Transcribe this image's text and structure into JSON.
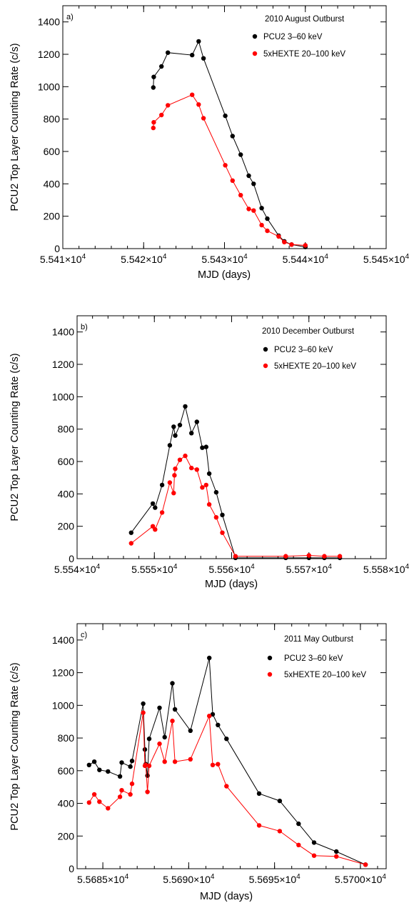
{
  "chart_data": [
    {
      "type": "line",
      "panel_label": "a)",
      "title": "2010 August Outburst",
      "xlabel": "MJD (days)",
      "ylabel": "PCU2 Top Layer Counting Rate (c/s)",
      "xlim": [
        55410,
        55450
      ],
      "ylim": [
        0,
        1500
      ],
      "xticks": [
        {
          "value": 55410,
          "mant": "5.541",
          "exp": "4"
        },
        {
          "value": 55420,
          "mant": "5.542",
          "exp": "4"
        },
        {
          "value": 55430,
          "mant": "5.543",
          "exp": "4"
        },
        {
          "value": 55440,
          "mant": "5.544",
          "exp": "4"
        },
        {
          "value": 55450,
          "mant": "5.545",
          "exp": "4"
        }
      ],
      "yticks": [
        0,
        200,
        400,
        600,
        800,
        1000,
        1200,
        1400
      ],
      "times_symbol": "×10",
      "legend_position": "top-right",
      "series": [
        {
          "name": "PCU2 3–60 keV",
          "color": "#000000",
          "x": [
            55421.2,
            55421.25,
            55422.2,
            55423.0,
            55426.0,
            55426.8,
            55427.4,
            55430.1,
            55431.0,
            55432.0,
            55433.0,
            55433.6,
            55434.6,
            55435.3,
            55436.7,
            55437.4,
            55438.3,
            55440.0
          ],
          "y": [
            995,
            1060,
            1125,
            1210,
            1195,
            1280,
            1175,
            820,
            695,
            580,
            450,
            400,
            250,
            185,
            80,
            45,
            25,
            10
          ]
        },
        {
          "name": "5xHEXTE 20–100 keV",
          "color": "#ff0000",
          "x": [
            55421.2,
            55421.25,
            55422.2,
            55423.0,
            55426.0,
            55426.8,
            55427.4,
            55430.1,
            55431.0,
            55432.0,
            55433.0,
            55433.6,
            55434.6,
            55435.3,
            55436.7,
            55437.4,
            55438.3,
            55440.0
          ],
          "y": [
            745,
            780,
            825,
            885,
            950,
            890,
            805,
            515,
            420,
            330,
            245,
            235,
            145,
            110,
            75,
            40,
            25,
            20
          ]
        }
      ]
    },
    {
      "type": "line",
      "panel_label": "b)",
      "title": "2010 December Outburst",
      "xlabel": "MJD (days)",
      "ylabel": "PCU2 Top Layer Counting Rate (c/s)",
      "xlim": [
        55540,
        55580
      ],
      "ylim": [
        0,
        1500
      ],
      "xticks": [
        {
          "value": 55540,
          "mant": "5.554",
          "exp": "4"
        },
        {
          "value": 55550,
          "mant": "5.555",
          "exp": "4"
        },
        {
          "value": 55560,
          "mant": "5.556",
          "exp": "4"
        },
        {
          "value": 55570,
          "mant": "5.557",
          "exp": "4"
        },
        {
          "value": 55580,
          "mant": "5.558",
          "exp": "4"
        }
      ],
      "yticks": [
        0,
        200,
        400,
        600,
        800,
        1000,
        1200,
        1400
      ],
      "times_symbol": "×10",
      "legend_position": "top-right",
      "series": [
        {
          "name": "PCU2 3–60 keV",
          "color": "#000000",
          "x": [
            55547.0,
            55549.8,
            55550.1,
            55551.0,
            55552.0,
            55552.5,
            55552.7,
            55553.3,
            55554.0,
            55554.8,
            55555.5,
            55556.2,
            55556.7,
            55557.1,
            55558.0,
            55558.8,
            55560.5,
            55567.0,
            55570.0,
            55572.0,
            55574.0
          ],
          "y": [
            160,
            340,
            315,
            455,
            700,
            815,
            760,
            825,
            940,
            775,
            845,
            685,
            690,
            525,
            410,
            270,
            5,
            5,
            5,
            5,
            5
          ]
        },
        {
          "name": "5xHEXTE 20–100 keV",
          "color": "#ff0000",
          "x": [
            55547.0,
            55549.8,
            55550.1,
            55551.0,
            55552.0,
            55552.5,
            55552.6,
            55552.7,
            55553.3,
            55554.0,
            55554.8,
            55555.5,
            55556.2,
            55556.7,
            55557.1,
            55558.0,
            55558.8,
            55560.5,
            55567.0,
            55570.0,
            55572.0,
            55574.0
          ],
          "y": [
            95,
            200,
            180,
            285,
            470,
            405,
            515,
            555,
            610,
            635,
            560,
            550,
            440,
            455,
            335,
            255,
            160,
            15,
            15,
            20,
            15,
            15
          ]
        }
      ]
    },
    {
      "type": "line",
      "panel_label": "c)",
      "title": "2011 May Outburst",
      "xlabel": "MJD (days)",
      "ylabel": "PCU2 Top Layer Counting Rate (c/s)",
      "xlim": [
        55683.5,
        55701.5
      ],
      "ylim": [
        0,
        1500
      ],
      "xticks": [
        {
          "value": 55685,
          "mant": "5.5685",
          "exp": "4"
        },
        {
          "value": 55690,
          "mant": "5.5690",
          "exp": "4"
        },
        {
          "value": 55695,
          "mant": "5.5695",
          "exp": "4"
        },
        {
          "value": 55700,
          "mant": "5.5700",
          "exp": "4"
        }
      ],
      "yticks": [
        0,
        200,
        400,
        600,
        800,
        1000,
        1200,
        1400
      ],
      "times_symbol": "×10",
      "legend_position": "top-right",
      "series": [
        {
          "name": "PCU2 3–60 keV",
          "color": "#000000",
          "x": [
            55684.2,
            55684.5,
            55684.8,
            55685.3,
            55686.0,
            55686.1,
            55686.6,
            55686.7,
            55687.35,
            55687.45,
            55687.5,
            55687.6,
            55687.7,
            55688.3,
            55688.6,
            55689.05,
            55689.2,
            55690.1,
            55691.2,
            55691.4,
            55691.7,
            55692.2,
            55694.1,
            55695.3,
            55696.4,
            55697.3,
            55698.6,
            55700.3
          ],
          "y": [
            635,
            655,
            605,
            595,
            565,
            650,
            625,
            660,
            1010,
            730,
            640,
            570,
            795,
            985,
            805,
            1135,
            975,
            845,
            1290,
            945,
            880,
            795,
            460,
            415,
            275,
            160,
            105,
            25
          ]
        },
        {
          "name": "5xHEXTE 20–100 keV",
          "color": "#ff0000",
          "x": [
            55684.2,
            55684.5,
            55684.8,
            55685.3,
            55686.0,
            55686.1,
            55686.6,
            55686.7,
            55687.35,
            55687.45,
            55687.5,
            55687.6,
            55687.7,
            55688.3,
            55688.6,
            55689.05,
            55689.2,
            55690.1,
            55691.2,
            55691.4,
            55691.7,
            55692.2,
            55694.1,
            55695.3,
            55696.4,
            55697.3,
            55698.6,
            55700.3
          ],
          "y": [
            405,
            455,
            410,
            370,
            440,
            480,
            455,
            520,
            955,
            630,
            635,
            470,
            630,
            765,
            655,
            905,
            655,
            670,
            935,
            635,
            640,
            505,
            265,
            230,
            145,
            80,
            75,
            25
          ]
        }
      ]
    }
  ]
}
